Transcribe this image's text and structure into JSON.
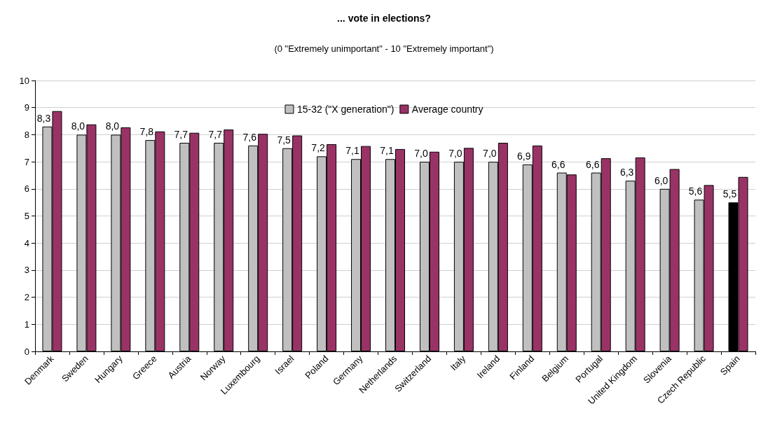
{
  "chart_data": {
    "type": "bar",
    "title": "... vote in elections?",
    "subtitle": "(0 \"Extremely unimportant\" - 10 \"Extremely important\")",
    "categories": [
      "Denmark",
      "Sweden",
      "Hungary",
      "Greece",
      "Austria",
      "Norway",
      "Luxembourg",
      "Israel",
      "Poland",
      "Germany",
      "Netherlands",
      "Switzerland",
      "Italy",
      "Ireland",
      "Finland",
      "Belgium",
      "Portugal",
      "United Kingdom",
      "Slovenia",
      "Czech Republic",
      "Spain"
    ],
    "series": [
      {
        "name": "15-32 (\"X generation\")",
        "color": "#c0c0c0",
        "colors": [
          "#c0c0c0",
          "#c0c0c0",
          "#c0c0c0",
          "#c0c0c0",
          "#c0c0c0",
          "#c0c0c0",
          "#c0c0c0",
          "#c0c0c0",
          "#c0c0c0",
          "#c0c0c0",
          "#c0c0c0",
          "#c0c0c0",
          "#c0c0c0",
          "#c0c0c0",
          "#c0c0c0",
          "#c0c0c0",
          "#c0c0c0",
          "#c0c0c0",
          "#c0c0c0",
          "#c0c0c0",
          "#000000"
        ],
        "values": [
          8.3,
          8.0,
          8.0,
          7.8,
          7.7,
          7.7,
          7.6,
          7.5,
          7.2,
          7.1,
          7.1,
          7.0,
          7.0,
          7.0,
          6.9,
          6.6,
          6.6,
          6.3,
          6.0,
          5.6,
          5.5
        ],
        "value_labels": [
          "8,3",
          "8,0",
          "8,0",
          "7,8",
          "7,7",
          "7,7",
          "7,6",
          "7,5",
          "7,2",
          "7,1",
          "7,1",
          "7,0",
          "7,0",
          "7,0",
          "6,9",
          "6,6",
          "6,6",
          "6,3",
          "6,0",
          "5,6",
          "5,5"
        ]
      },
      {
        "name": "Average country",
        "color": "#993366",
        "values": [
          8.87,
          8.38,
          8.27,
          8.12,
          8.07,
          8.19,
          8.03,
          7.97,
          7.65,
          7.58,
          7.47,
          7.37,
          7.51,
          7.7,
          7.6,
          6.53,
          7.13,
          7.16,
          6.73,
          6.14,
          6.44
        ]
      }
    ],
    "ylim": [
      0,
      10
    ],
    "yticks": [
      0,
      1,
      2,
      3,
      4,
      5,
      6,
      7,
      8,
      9,
      10
    ],
    "grid": "y",
    "legend": "top"
  }
}
